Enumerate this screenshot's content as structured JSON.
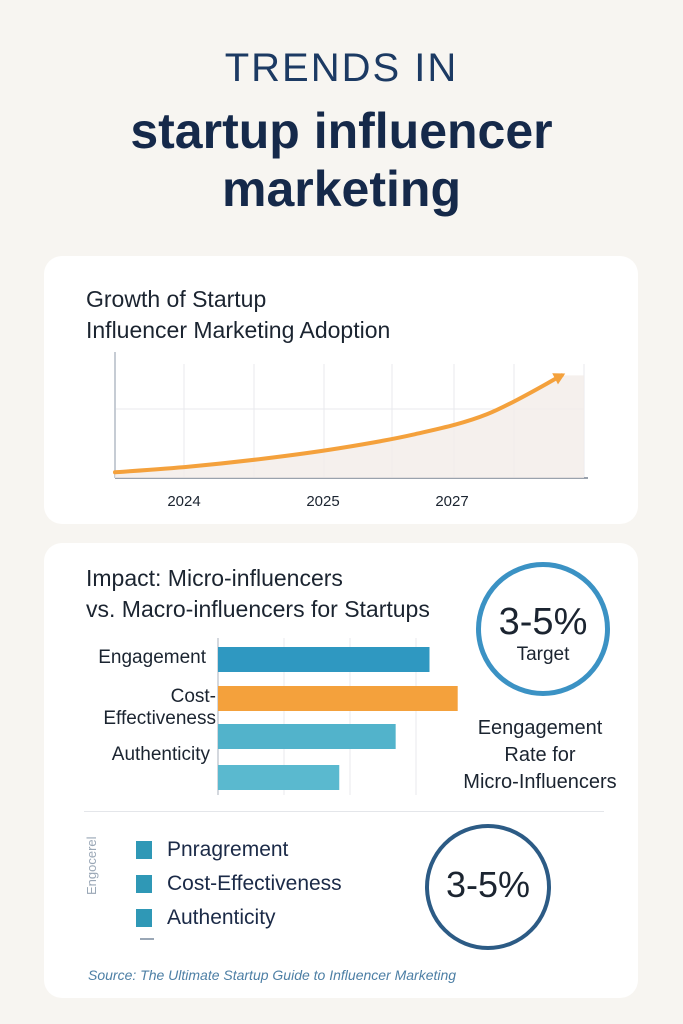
{
  "header": {
    "kicker": "TRENDS IN",
    "title_line1": "startup influencer",
    "title_line2": "marketing"
  },
  "colors": {
    "line": "#f4a13c",
    "engagement_bar": "#2f98c1",
    "cost_bar": "#f4a13c",
    "authenticity_bar": "#52b3cb",
    "extra_bar": "#5ab9cf",
    "accent_circle": "#3b92c4"
  },
  "chart_data": [
    {
      "type": "line",
      "title_line1": "Growth of Startup",
      "title_line2": "Influencer Marketing Adoption",
      "xlabel": "",
      "ylabel": "",
      "tick_labels": [
        "2024",
        "2025",
        "2027"
      ],
      "x": [
        0,
        1,
        2,
        3,
        4,
        5,
        6
      ],
      "values": [
        5,
        10,
        17,
        26,
        38,
        56,
        90
      ],
      "xlim": [
        0,
        6.3
      ],
      "ylim": [
        0,
        100
      ],
      "grid": true,
      "area_fill": true,
      "arrow_end": true
    },
    {
      "type": "bar",
      "orientation": "horizontal",
      "title_line1": "Impact: Micro-influencers",
      "title_line2": "vs. Macro-influencers for Startups",
      "categories": [
        "Engagement",
        "Cost-Effectiveness",
        "Authenticity",
        ""
      ],
      "label_engagement": "Engagement",
      "label_cost_1": "Cost-",
      "label_cost_2": "Effectiveness",
      "label_authenticity": "Authenticity",
      "values": [
        75,
        85,
        63,
        43
      ],
      "xlim": [
        0,
        100
      ],
      "grid": true
    }
  ],
  "callout": {
    "value": "3-5%",
    "sub": "Target",
    "note_line1": "Eengagement",
    "note_line2": "Rate for",
    "note_line3": "Micro-Influencers"
  },
  "legend": {
    "items": [
      "Pnragrement",
      "Cost-Effectiveness",
      "Authenticity"
    ],
    "side_label": "Engocerel"
  },
  "callout2": {
    "value": "3-5%"
  },
  "source": "Source: The Ultimate Startup Guide to Influencer Marketing"
}
